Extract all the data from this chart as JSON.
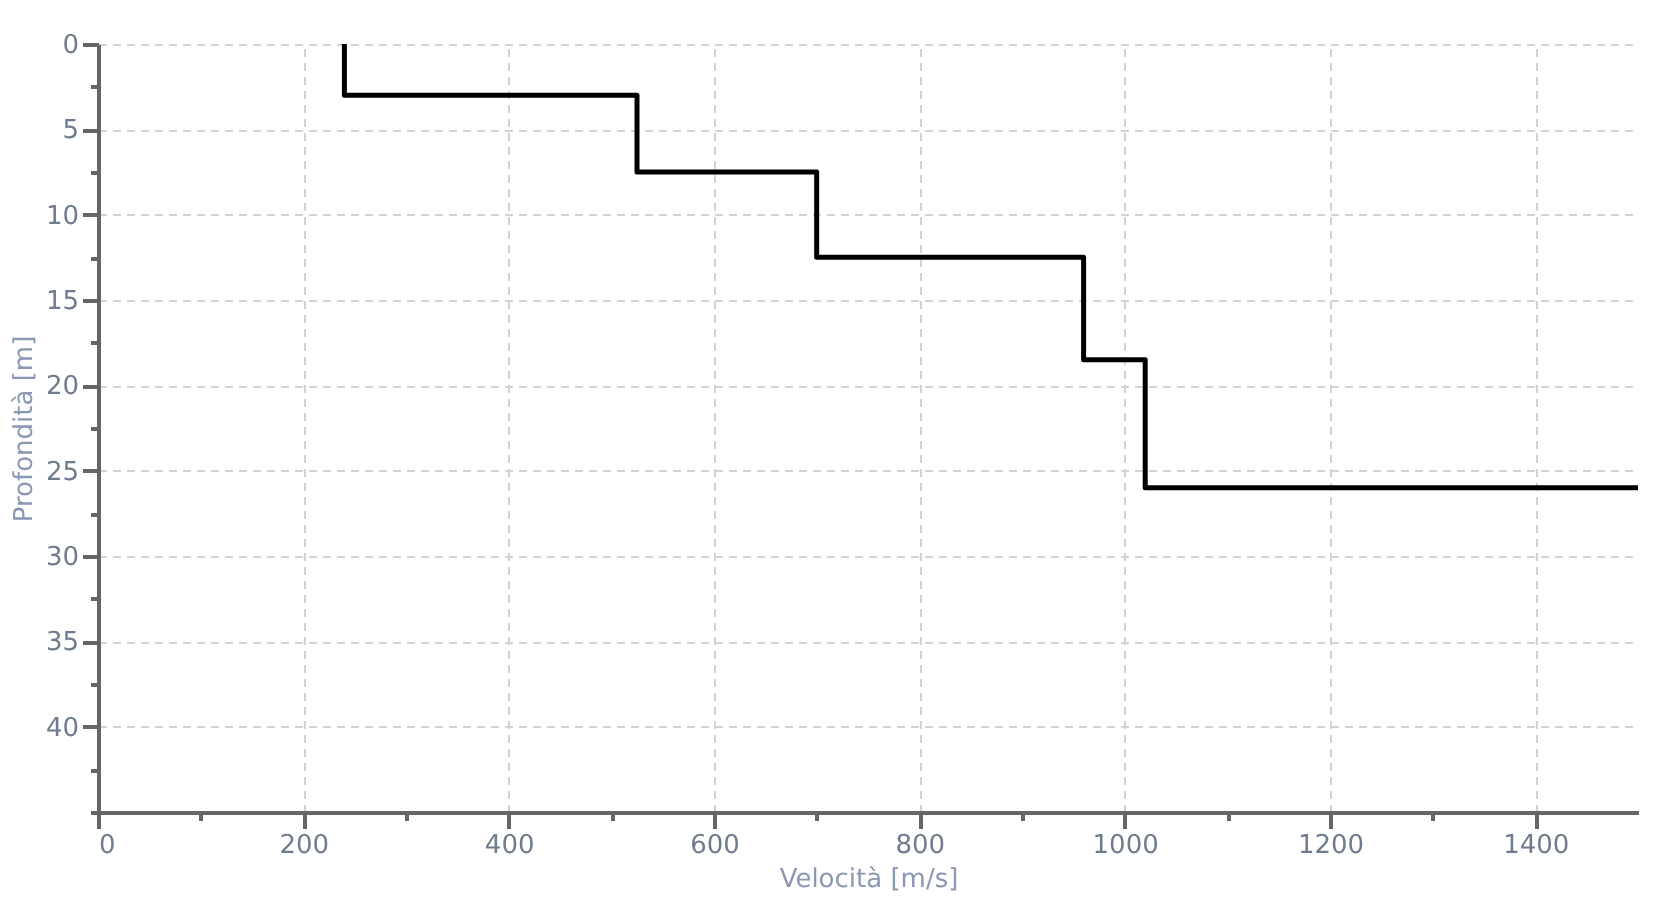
{
  "chart_data": {
    "type": "line",
    "xlabel": "Velocità [m/s]",
    "ylabel": "Profondità [m]",
    "x": [
      240,
      240,
      525,
      525,
      700,
      700,
      960,
      960,
      1020,
      1020,
      1500
    ],
    "series": [
      {
        "color": "#000000",
        "values": [
          0,
          3,
          3,
          7.5,
          7.5,
          12.5,
          12.5,
          18.5,
          18.5,
          26,
          26
        ]
      }
    ],
    "xlim": [
      0,
      1500
    ],
    "ylim": [
      45,
      0
    ],
    "xticks": [
      0,
      {
        "value": 100,
        "label": null
      },
      200,
      {
        "value": 300,
        "label": null
      },
      400,
      {
        "value": 500,
        "label": null
      },
      600,
      {
        "value": 700,
        "label": null
      },
      800,
      {
        "value": 900,
        "label": null
      },
      1000,
      {
        "value": 1100,
        "label": null
      },
      1200,
      {
        "value": 1300,
        "label": null
      },
      1400
    ],
    "yticks": [
      0,
      {
        "value": 2.5,
        "label": null
      },
      5,
      {
        "value": 7.5,
        "label": null
      },
      10,
      {
        "value": 12.5,
        "label": null
      },
      15,
      {
        "value": 17.5,
        "label": null
      },
      20,
      {
        "value": 22.5,
        "label": null
      },
      25,
      {
        "value": 27.5,
        "label": null
      },
      30,
      {
        "value": 32.5,
        "label": null
      },
      35,
      {
        "value": 37.5,
        "label": null
      },
      40,
      {
        "value": 42.5,
        "label": null
      },
      {
        "value": 45,
        "label": null
      }
    ],
    "grid": true,
    "marker": "none",
    "line_style": "solid"
  }
}
